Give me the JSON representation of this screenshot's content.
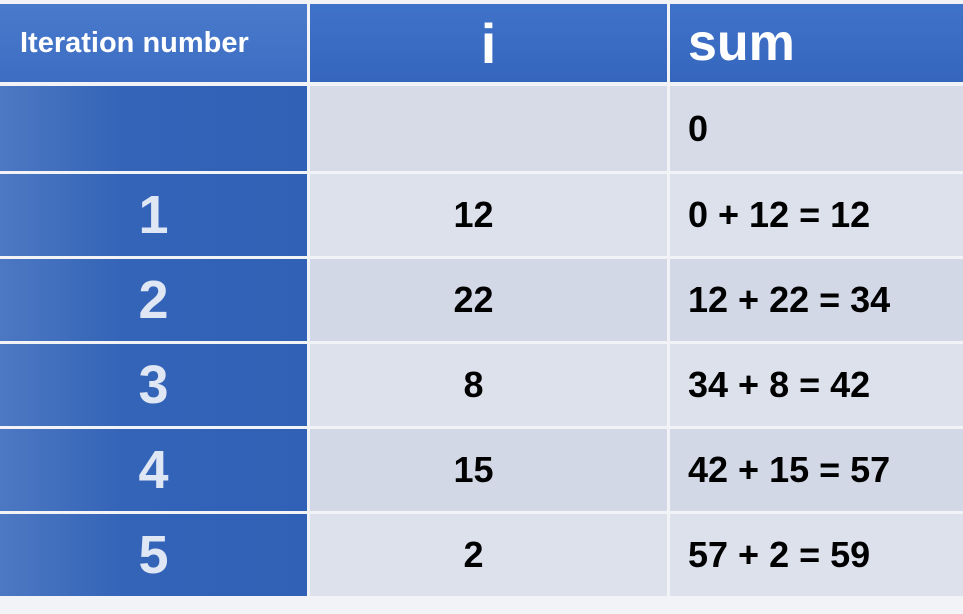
{
  "table": {
    "headers": {
      "iteration": "Iteration number",
      "i": "i",
      "sum": "sum"
    },
    "rows": [
      {
        "iteration": "",
        "i": "",
        "sum": "0"
      },
      {
        "iteration": "1",
        "i": "12",
        "sum": "0 + 12 = 12"
      },
      {
        "iteration": "2",
        "i": "22",
        "sum": "12 + 22 = 34"
      },
      {
        "iteration": "3",
        "i": "8",
        "sum": "34 + 8 = 42"
      },
      {
        "iteration": "4",
        "i": "15",
        "sum": "42 + 15 = 57"
      },
      {
        "iteration": "5",
        "i": "2",
        "sum": "57 + 2 = 59"
      }
    ]
  },
  "colors": {
    "header_blue": "#3f72c9",
    "iteration_column_blue": "#3464b8",
    "row_light": "#dde1ec",
    "row_dark": "#d2d8e6"
  }
}
